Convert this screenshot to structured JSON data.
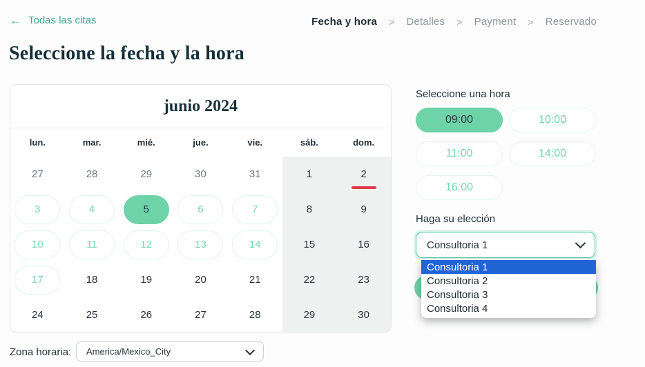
{
  "header": {
    "back": {
      "arrow": "←",
      "label": "Todas las citas"
    },
    "breadcrumb": {
      "separator": ">",
      "items": [
        {
          "label": "Fecha y hora",
          "state": "active"
        },
        {
          "label": "Detalles",
          "state": "upcoming"
        },
        {
          "label": "Payment",
          "state": "upcoming"
        },
        {
          "label": "Reservado",
          "state": "upcoming"
        }
      ]
    }
  },
  "page_title": "Seleccione la fecha y la hora",
  "calendar": {
    "month_title": "junio 2024",
    "weekdays": [
      "lun.",
      "mar.",
      "mié.",
      "jue.",
      "vie.",
      "sáb.",
      "dom."
    ],
    "days": [
      {
        "n": 27,
        "state": "muted"
      },
      {
        "n": 28,
        "state": "muted"
      },
      {
        "n": 29,
        "state": "muted"
      },
      {
        "n": 30,
        "state": "muted"
      },
      {
        "n": 31,
        "state": "muted"
      },
      {
        "n": 1,
        "state": "weekend"
      },
      {
        "n": 2,
        "state": "weekend",
        "today": true
      },
      {
        "n": 3,
        "state": "available"
      },
      {
        "n": 4,
        "state": "available"
      },
      {
        "n": 5,
        "state": "selected"
      },
      {
        "n": 6,
        "state": "available"
      },
      {
        "n": 7,
        "state": "available"
      },
      {
        "n": 8,
        "state": "weekend"
      },
      {
        "n": 9,
        "state": "weekend"
      },
      {
        "n": 10,
        "state": "available"
      },
      {
        "n": 11,
        "state": "available"
      },
      {
        "n": 12,
        "state": "available"
      },
      {
        "n": 13,
        "state": "available"
      },
      {
        "n": 14,
        "state": "available"
      },
      {
        "n": 15,
        "state": "weekend"
      },
      {
        "n": 16,
        "state": "weekend"
      },
      {
        "n": 17,
        "state": "available"
      },
      {
        "n": 18,
        "state": "plain"
      },
      {
        "n": 19,
        "state": "plain"
      },
      {
        "n": 20,
        "state": "plain"
      },
      {
        "n": 21,
        "state": "plain"
      },
      {
        "n": 22,
        "state": "weekend"
      },
      {
        "n": 23,
        "state": "weekend"
      },
      {
        "n": 24,
        "state": "plain"
      },
      {
        "n": 25,
        "state": "plain"
      },
      {
        "n": 26,
        "state": "plain"
      },
      {
        "n": 27,
        "state": "plain"
      },
      {
        "n": 28,
        "state": "plain"
      },
      {
        "n": 29,
        "state": "weekend"
      },
      {
        "n": 30,
        "state": "weekend"
      }
    ]
  },
  "time_panel": {
    "label": "Seleccione una hora",
    "slots": [
      {
        "time": "09:00",
        "selected": true
      },
      {
        "time": "10:00",
        "selected": false
      },
      {
        "time": "11:00",
        "selected": false
      },
      {
        "time": "14:00",
        "selected": false
      },
      {
        "time": "16:00",
        "selected": false
      }
    ]
  },
  "choice_panel": {
    "label": "Haga su elección",
    "selected_value": "Consultoria 1",
    "options": [
      {
        "label": "Consultoria 1",
        "highlighted": true
      },
      {
        "label": "Consultoria 2",
        "highlighted": false
      },
      {
        "label": "Consultoria 3",
        "highlighted": false
      },
      {
        "label": "Consultoria 4",
        "highlighted": false
      }
    ]
  },
  "timezone_bar": {
    "label": "Zona horaria:",
    "value": "America/Mexico_City"
  },
  "colors": {
    "accent_green": "#6fd3a8",
    "accent_teal_text": "#3aa98d",
    "available_text": "#77d8b0",
    "available_border": "#dff4ec",
    "highlight_blue": "#2164d6",
    "today_red": "#e13a50",
    "weekend_bg": "#edf1f0",
    "title_color": "#132f3a"
  }
}
